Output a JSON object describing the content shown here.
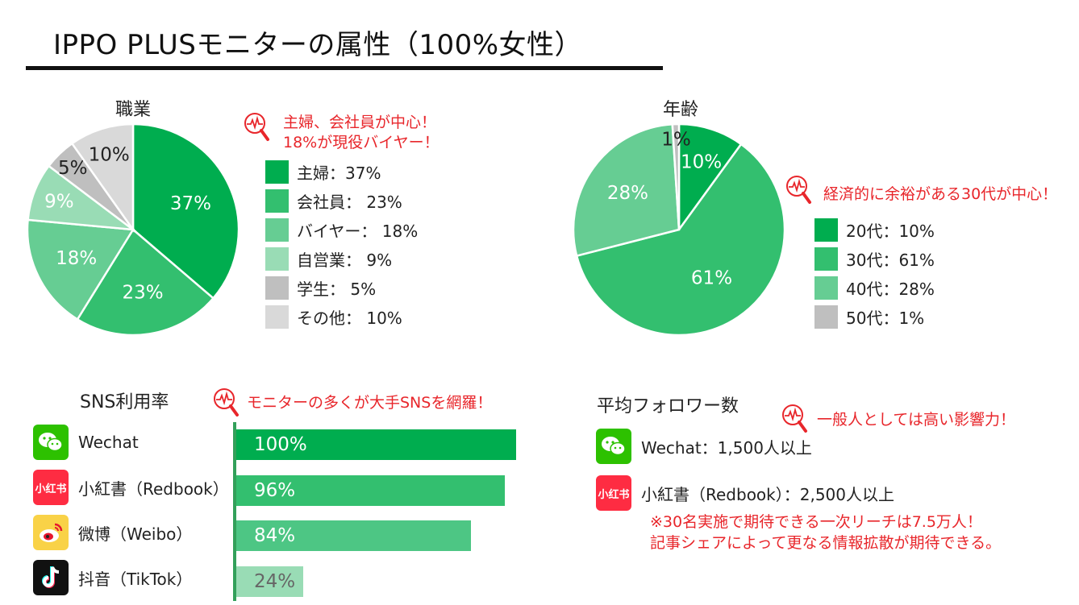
{
  "header": {
    "title": "IPPO PLUSモニターの属性（100%女性）"
  },
  "charts": {
    "occupation": {
      "title": "職業",
      "callout": [
        "主婦、会社員が中心！",
        "18%が現役バイヤー！"
      ],
      "legend": [
        "主婦：37%",
        "会社員： 23%",
        "バイヤー： 18%",
        "自営業： 9%",
        "学生： 5%",
        "その他： 10%"
      ]
    },
    "age": {
      "title": "年齢",
      "callout": [
        "経済的に余裕がある30代が中心！"
      ],
      "legend": [
        "20代：10%",
        "30代：61%",
        "40代：28%",
        "50代：1%"
      ]
    },
    "sns": {
      "title": "SNS利用率",
      "callout": [
        "モニターの多くが大手SNSを網羅！"
      ],
      "platforms": [
        "Wechat",
        "小紅書（Redbook）",
        "微博（Weibo）",
        "抖音（TikTok）"
      ]
    }
  },
  "followers": {
    "title": "平均フォロワー数",
    "callout": "一般人としては高い影響力！",
    "rows": [
      "Wechat：1,500人以上",
      "小紅書（Redbook）：2,500人以上"
    ],
    "note": [
      "※30名実施で期待できる一次リーチは7.5万人！",
      "記事シェアによって更なる情報拡散が期待できる。"
    ]
  },
  "icons": {
    "wechat": "wechat-icon",
    "redbook": "redbook-icon",
    "redbook_text": "小红书",
    "weibo": "weibo-icon",
    "tiktok": "tiktok-icon",
    "callout": "magnifier-pulse-icon"
  },
  "colors": {
    "green1": "#00ad4f",
    "green2": "#33bf6f",
    "green3": "#66cd93",
    "green4": "#99dcb5",
    "gray1": "#bfbfbf",
    "gray2": "#d9d9d9",
    "red": "#e8262b"
  },
  "chart_data": [
    {
      "type": "pie",
      "title": "職業",
      "categories": [
        "主婦",
        "会社員",
        "バイヤー",
        "自営業",
        "学生",
        "その他"
      ],
      "values": [
        37,
        23,
        18,
        9,
        5,
        10
      ],
      "labels": [
        "37%",
        "23%",
        "18%",
        "9%",
        "5%",
        "10%"
      ],
      "colors": [
        "#00ad4f",
        "#33bf6f",
        "#66cd93",
        "#99dcb5",
        "#bfbfbf",
        "#d9d9d9"
      ],
      "label_colors": [
        "#ffffff",
        "#ffffff",
        "#ffffff",
        "#ffffff",
        "#222222",
        "#222222"
      ],
      "legend_position": "right"
    },
    {
      "type": "pie",
      "title": "年齢",
      "categories": [
        "20代",
        "30代",
        "40代",
        "50代"
      ],
      "values": [
        10,
        61,
        28,
        1
      ],
      "labels": [
        "10%",
        "61%",
        "28%",
        "1%"
      ],
      "colors": [
        "#00ad4f",
        "#33bf6f",
        "#66cd93",
        "#bfbfbf"
      ],
      "label_colors": [
        "#ffffff",
        "#ffffff",
        "#ffffff",
        "#222222"
      ],
      "legend_position": "right"
    },
    {
      "type": "bar",
      "orientation": "horizontal",
      "title": "SNS利用率",
      "categories": [
        "Wechat",
        "小紅書（Redbook）",
        "微博（Weibo）",
        "抖音（TikTok）"
      ],
      "values": [
        100,
        96,
        84,
        24
      ],
      "labels": [
        "100%",
        "96%",
        "84%",
        "24%"
      ],
      "xlim": [
        0,
        100
      ],
      "colors": [
        "#00ad4f",
        "#33bf6f",
        "#4dc684",
        "#99dcb5"
      ],
      "label_colors": [
        "#ffffff",
        "#ffffff",
        "#ffffff",
        "#666666"
      ]
    }
  ]
}
